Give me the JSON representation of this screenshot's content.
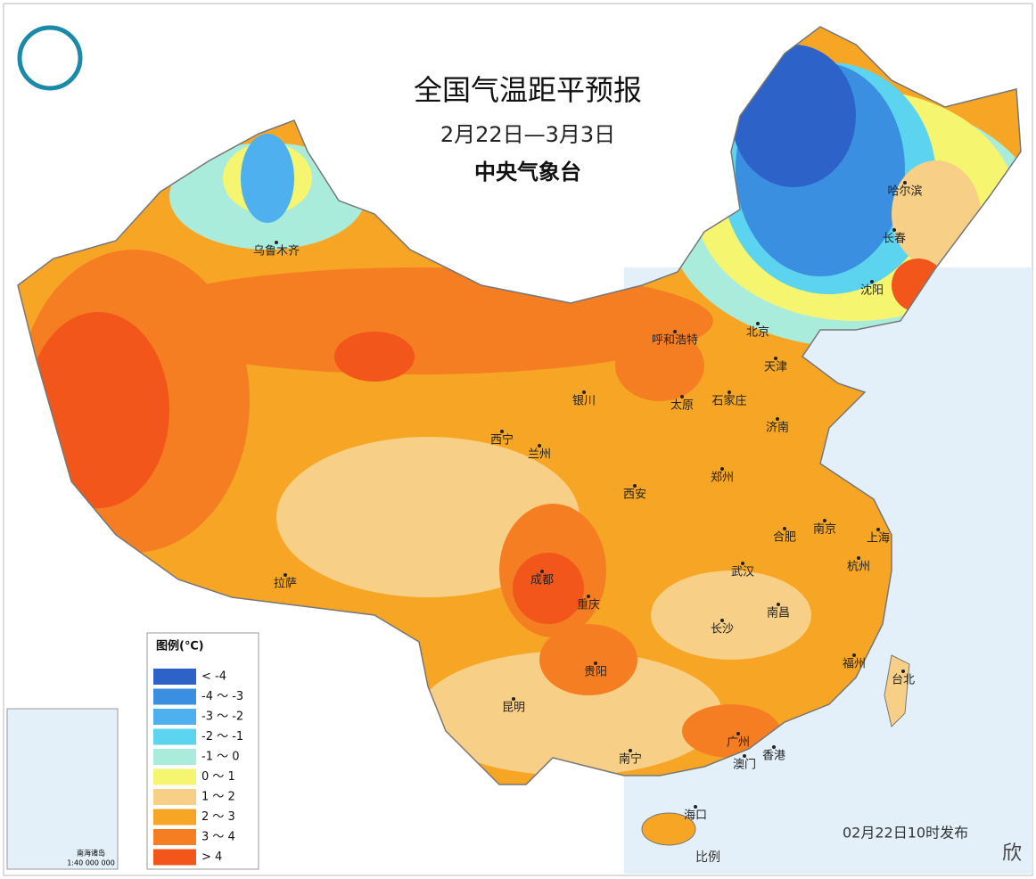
{
  "header": {
    "title": "全国气温距平预报",
    "date": "2月22日—3月3日",
    "source": "中央气象台"
  },
  "legend": {
    "title": "图例(℃)",
    "items": [
      {
        "label": "< -4",
        "color": "#2d63c8"
      },
      {
        "label": "-4 ～ -3",
        "color": "#3b8fe0"
      },
      {
        "label": "-3 ～ -2",
        "color": "#4fb0ef"
      },
      {
        "label": "-2 ～ -1",
        "color": "#5cd4f0"
      },
      {
        "label": "-1 ～ 0",
        "color": "#a9ecdc"
      },
      {
        "label": "0 ～ 1",
        "color": "#f5f570"
      },
      {
        "label": "1 ～ 2",
        "color": "#f8cf86"
      },
      {
        "label": "2 ～ 3",
        "color": "#f6a624"
      },
      {
        "label": "3 ～ 4",
        "color": "#f57e22"
      },
      {
        "label": "> 4",
        "color": "#f2561a"
      }
    ]
  },
  "cities": [
    "乌鲁木齐",
    "哈尔滨",
    "长春",
    "沈阳",
    "北京",
    "天津",
    "呼和浩特",
    "银川",
    "太原",
    "石家庄",
    "济南",
    "西宁",
    "兰州",
    "西安",
    "郑州",
    "合肥",
    "南京",
    "上海",
    "杭州",
    "武汉",
    "成都",
    "重庆",
    "南昌",
    "长沙",
    "拉萨",
    "贵阳",
    "福州",
    "台北",
    "昆明",
    "广州",
    "香港",
    "澳门",
    "南宁",
    "海口"
  ],
  "inset": {
    "label": "南海诸岛",
    "scale": "1:40 000 000"
  },
  "footer": {
    "release": "02月22日10时发布",
    "scale": "比例",
    "watermark": "欣"
  }
}
